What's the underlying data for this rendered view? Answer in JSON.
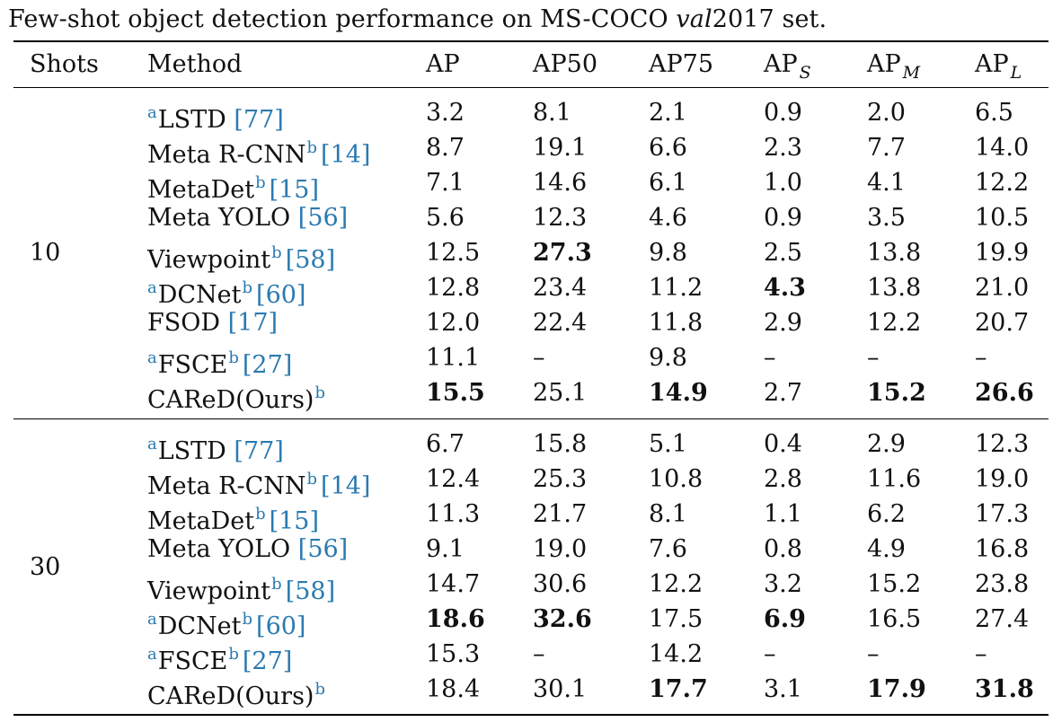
{
  "caption": {
    "prefix": "Few-shot object detection performance on MS-COCO ",
    "italic": "val",
    "suffix": "2017 set."
  },
  "headers": {
    "shots": "Shots",
    "method": "Method",
    "ap": "AP",
    "ap50": "AP50",
    "ap75": "AP75",
    "aps": "AP",
    "aps_sub": "S",
    "apm": "AP",
    "apm_sub": "M",
    "apl": "AP",
    "apl_sub": "L"
  },
  "groups": [
    {
      "shots": "10",
      "rows": [
        {
          "pre": "a",
          "name": "LSTD",
          "post": "",
          "ref": "[77]",
          "vals": [
            "3.2",
            "8.1",
            "2.1",
            "0.9",
            "2.0",
            "6.5"
          ],
          "bold": []
        },
        {
          "pre": "",
          "name": "Meta R-CNN",
          "post": "b",
          "ref": "[14]",
          "vals": [
            "8.7",
            "19.1",
            "6.6",
            "2.3",
            "7.7",
            "14.0"
          ],
          "bold": []
        },
        {
          "pre": "",
          "name": "MetaDet",
          "post": "b",
          "ref": "[15]",
          "vals": [
            "7.1",
            "14.6",
            "6.1",
            "1.0",
            "4.1",
            "12.2"
          ],
          "bold": []
        },
        {
          "pre": "",
          "name": "Meta YOLO",
          "post": "",
          "ref": "[56]",
          "vals": [
            "5.6",
            "12.3",
            "4.6",
            "0.9",
            "3.5",
            "10.5"
          ],
          "bold": []
        },
        {
          "pre": "",
          "name": "Viewpoint",
          "post": "b",
          "ref": "[58]",
          "vals": [
            "12.5",
            "27.3",
            "9.8",
            "2.5",
            "13.8",
            "19.9"
          ],
          "bold": [
            1
          ]
        },
        {
          "pre": "a",
          "name": "DCNet",
          "post": "b",
          "ref": "[60]",
          "vals": [
            "12.8",
            "23.4",
            "11.2",
            "4.3",
            "13.8",
            "21.0"
          ],
          "bold": [
            3
          ]
        },
        {
          "pre": "",
          "name": "FSOD",
          "post": "",
          "ref": "[17]",
          "vals": [
            "12.0",
            "22.4",
            "11.8",
            "2.9",
            "12.2",
            "20.7"
          ],
          "bold": []
        },
        {
          "pre": "a",
          "name": "FSCE",
          "post": "b",
          "ref": "[27]",
          "vals": [
            "11.1",
            "–",
            "9.8",
            "–",
            "–",
            "–"
          ],
          "bold": []
        },
        {
          "pre": "",
          "name": "CAReD(Ours)",
          "post": "b",
          "ref": "",
          "vals": [
            "15.5",
            "25.1",
            "14.9",
            "2.7",
            "15.2",
            "26.6"
          ],
          "bold": [
            0,
            2,
            4,
            5
          ]
        }
      ]
    },
    {
      "shots": "30",
      "rows": [
        {
          "pre": "a",
          "name": "LSTD",
          "post": "",
          "ref": "[77]",
          "vals": [
            "6.7",
            "15.8",
            "5.1",
            "0.4",
            "2.9",
            "12.3"
          ],
          "bold": []
        },
        {
          "pre": "",
          "name": "Meta R-CNN",
          "post": "b",
          "ref": "[14]",
          "vals": [
            "12.4",
            "25.3",
            "10.8",
            "2.8",
            "11.6",
            "19.0"
          ],
          "bold": []
        },
        {
          "pre": "",
          "name": "MetaDet",
          "post": "b",
          "ref": "[15]",
          "vals": [
            "11.3",
            "21.7",
            "8.1",
            "1.1",
            "6.2",
            "17.3"
          ],
          "bold": []
        },
        {
          "pre": "",
          "name": "Meta YOLO",
          "post": "",
          "ref": "[56]",
          "vals": [
            "9.1",
            "19.0",
            "7.6",
            "0.8",
            "4.9",
            "16.8"
          ],
          "bold": []
        },
        {
          "pre": "",
          "name": "Viewpoint",
          "post": "b",
          "ref": "[58]",
          "vals": [
            "14.7",
            "30.6",
            "12.2",
            "3.2",
            "15.2",
            "23.8"
          ],
          "bold": []
        },
        {
          "pre": "a",
          "name": "DCNet",
          "post": "b",
          "ref": "[60]",
          "vals": [
            "18.6",
            "32.6",
            "17.5",
            "6.9",
            "16.5",
            "27.4"
          ],
          "bold": [
            0,
            1,
            3
          ]
        },
        {
          "pre": "a",
          "name": "FSCE",
          "post": "b",
          "ref": "[27]",
          "vals": [
            "15.3",
            "–",
            "14.2",
            "–",
            "–",
            "–"
          ],
          "bold": []
        },
        {
          "pre": "",
          "name": "CAReD(Ours)",
          "post": "b",
          "ref": "",
          "vals": [
            "18.4",
            "30.1",
            "17.7",
            "3.1",
            "17.9",
            "31.8"
          ],
          "bold": [
            2,
            4,
            5
          ]
        }
      ]
    }
  ]
}
